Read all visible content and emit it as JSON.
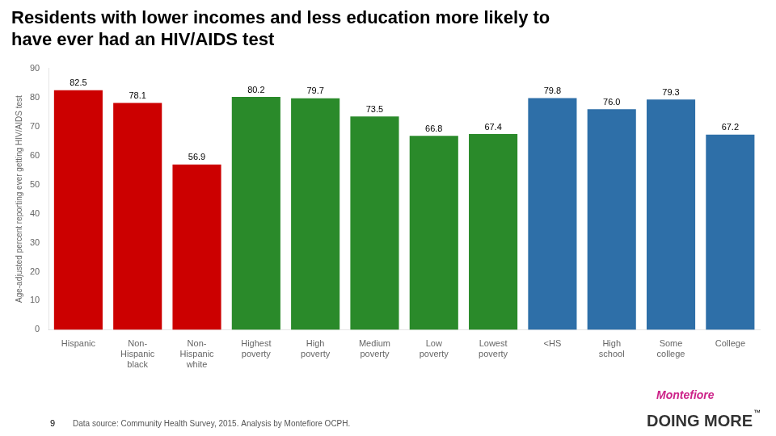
{
  "chart_data": {
    "type": "bar",
    "title": [
      "Residents with lower incomes and less education more likely to",
      "have ever had an HIV/AIDS test"
    ],
    "ylabel": "Age-adjusted percent reporting ever getting HIV/AIDS test",
    "categories": [
      "Hispanic",
      "Non-\nHispanic\nblack",
      "Non-\nHispanic\nwhite",
      "Highest\npoverty",
      "High\npoverty",
      "Medium\npoverty",
      "Low\npoverty",
      "Lowest\npoverty",
      "<HS",
      "High\nschool",
      "Some\ncollege",
      "College"
    ],
    "values": [
      82.5,
      78.1,
      56.9,
      80.2,
      79.7,
      73.5,
      66.8,
      67.4,
      79.8,
      76.0,
      79.3,
      67.2
    ],
    "value_labels": [
      "82.5",
      "78.1",
      "56.9",
      "80.2",
      "79.7",
      "73.5",
      "66.8",
      "67.4",
      "79.8",
      "76.0",
      "79.3",
      "67.2"
    ],
    "colors": [
      "#cc0000",
      "#cc0000",
      "#cc0000",
      "#2a8a2a",
      "#2a8a2a",
      "#2a8a2a",
      "#2a8a2a",
      "#2a8a2a",
      "#2e6fa8",
      "#2e6fa8",
      "#2e6fa8",
      "#2e6fa8"
    ],
    "ylim": [
      0,
      90
    ],
    "yticks": [
      0,
      10,
      20,
      30,
      40,
      50,
      60,
      70,
      80,
      90
    ],
    "grid": false,
    "data_labels": true,
    "annotations": [
      {
        "text": "9",
        "color": "#000000"
      },
      {
        "text": "Data source: Community Health Survey, 2015. Analysis by Montefiore OCPH.",
        "color": "#555555"
      },
      {
        "text": "Montefiore",
        "color": "#cc2288"
      },
      {
        "text": "DOING MORE",
        "color": "#333333"
      },
      {
        "text": "™",
        "color": "#000000"
      }
    ]
  }
}
